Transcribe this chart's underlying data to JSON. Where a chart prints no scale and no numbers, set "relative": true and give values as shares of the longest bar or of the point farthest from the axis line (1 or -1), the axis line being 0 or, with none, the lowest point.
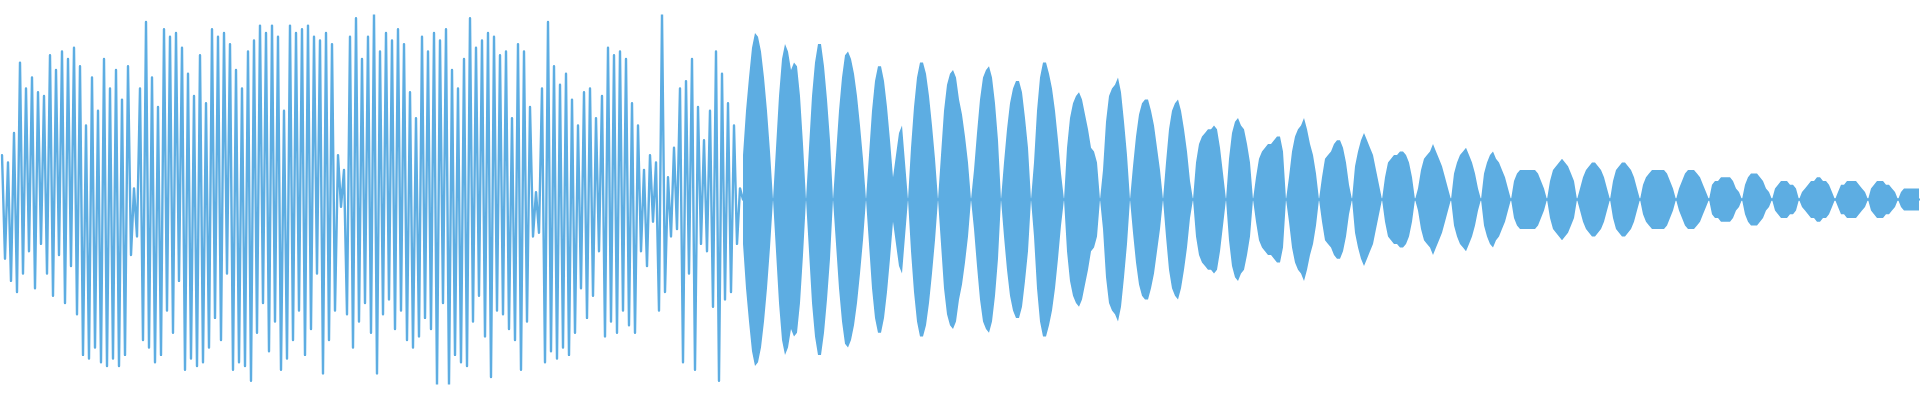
{
  "chart_data": {
    "type": "line",
    "relative": true,
    "categories": [
      null,
      null,
      null,
      null,
      null,
      null,
      null,
      null,
      null,
      null,
      null,
      null,
      null,
      null,
      null,
      null,
      null,
      null,
      null,
      null,
      null,
      null,
      null,
      null,
      null,
      null,
      null,
      null,
      null,
      null,
      null,
      null,
      null,
      null,
      null,
      null,
      null,
      null,
      null,
      null,
      null,
      null,
      null,
      null,
      null,
      null,
      null,
      null,
      null,
      null,
      null,
      null,
      null,
      null,
      null,
      null,
      null,
      null,
      null,
      null,
      null,
      null,
      null,
      null,
      null,
      null,
      null,
      null,
      null,
      null,
      null,
      null,
      null,
      null,
      null,
      null,
      null,
      null,
      null,
      null,
      null,
      null,
      null,
      null,
      null,
      null,
      null,
      null,
      null,
      null,
      null,
      null,
      null,
      null,
      null,
      null,
      null,
      null,
      null,
      null,
      null,
      null,
      null,
      null,
      null,
      null,
      null,
      null,
      null,
      null,
      null,
      null,
      null,
      null,
      null,
      null,
      null,
      null,
      null,
      null,
      null,
      null,
      null,
      null,
      null,
      null,
      null,
      null,
      null,
      null,
      null,
      null,
      null,
      null,
      null,
      null,
      null,
      null,
      null,
      null,
      null,
      null,
      null,
      null,
      null,
      null,
      null,
      null,
      null,
      null,
      null,
      null,
      null,
      null,
      null,
      null,
      null,
      null,
      null,
      null,
      null,
      null,
      null,
      null,
      null,
      null,
      null,
      null,
      null,
      null,
      null,
      null,
      null,
      null,
      null,
      null,
      null,
      null,
      null,
      null,
      null,
      null,
      null,
      null,
      null,
      null,
      null,
      null,
      null,
      null,
      null,
      null,
      null,
      null,
      null,
      null,
      null,
      null,
      null,
      null,
      null,
      null,
      null,
      null,
      null,
      null,
      null,
      null,
      null,
      null,
      null,
      null,
      null,
      null,
      null,
      null,
      null,
      null,
      null,
      null,
      null,
      null,
      null,
      null,
      null,
      null,
      null,
      null,
      null,
      null,
      null,
      null,
      null,
      null,
      null,
      null,
      null,
      null,
      null,
      null,
      null,
      null,
      null,
      null,
      null,
      null,
      null,
      null,
      null,
      null,
      null,
      null,
      null,
      null,
      null,
      null,
      null,
      null,
      null,
      null,
      null,
      null,
      null,
      null,
      null,
      null,
      null,
      null,
      null,
      null,
      null,
      null,
      null,
      null,
      null,
      null,
      null,
      null,
      null,
      null,
      null,
      null,
      null,
      null,
      null,
      null,
      null,
      null,
      null,
      null,
      null,
      null,
      null,
      null,
      null,
      null,
      null,
      null,
      null,
      null,
      null,
      null,
      null,
      null,
      null,
      null,
      null,
      null,
      null,
      null,
      null,
      null,
      null,
      null,
      null,
      null,
      null,
      null,
      null,
      null,
      null,
      null,
      null,
      null,
      null,
      null,
      null,
      null,
      null,
      null,
      null,
      null,
      null,
      null,
      null,
      null,
      null,
      null,
      null,
      null,
      null,
      null,
      null,
      null,
      null,
      null,
      null,
      null,
      null,
      null,
      null,
      null,
      null,
      null,
      null,
      null,
      null,
      null,
      null,
      null,
      null,
      null,
      null,
      null,
      null,
      null,
      null,
      null,
      null,
      null,
      null,
      null,
      null,
      null,
      null,
      null,
      null,
      null,
      null,
      null,
      null,
      null,
      null,
      null,
      null,
      null,
      null,
      null,
      null,
      null,
      null,
      null,
      null,
      null,
      null,
      null,
      null,
      null,
      null,
      null,
      null,
      null,
      null,
      null,
      null,
      null,
      null,
      null,
      null,
      null,
      null,
      null,
      null,
      null,
      null,
      null,
      null,
      null,
      null,
      null,
      null,
      null,
      null,
      null,
      null,
      null,
      null,
      null,
      null,
      null,
      null,
      null,
      null,
      null,
      null,
      null,
      null,
      null,
      null,
      null,
      null,
      null,
      null,
      null,
      null,
      null,
      null,
      null,
      null,
      null,
      null,
      null,
      null,
      null,
      null,
      null,
      null,
      null,
      null,
      null,
      null,
      null,
      null,
      null,
      null,
      null,
      null,
      null,
      null,
      null,
      null,
      null,
      null,
      null,
      null,
      null,
      null,
      null,
      null,
      null,
      null,
      null,
      null,
      null,
      null,
      null,
      null,
      null,
      null,
      null,
      null,
      null,
      null,
      null,
      null,
      null,
      null,
      null,
      null,
      null,
      null,
      null,
      null,
      null,
      null,
      null,
      null,
      null,
      null,
      null,
      null,
      null,
      null,
      null,
      null,
      null,
      null,
      null,
      null,
      null,
      null,
      null,
      null,
      null,
      null,
      null,
      null,
      null,
      null,
      null,
      null,
      null,
      null,
      null,
      null,
      null,
      null,
      null,
      null,
      null,
      null,
      null,
      null,
      null,
      null,
      null,
      null,
      null,
      null,
      null,
      null,
      null,
      null,
      null,
      null,
      null,
      null,
      null,
      null,
      null,
      null,
      null,
      null,
      null,
      null,
      null,
      null,
      null,
      null,
      null,
      null,
      null,
      null,
      null,
      null,
      null,
      null,
      null,
      null,
      null,
      null,
      null,
      null,
      null,
      null,
      null,
      null,
      null,
      null,
      null,
      null,
      null,
      null,
      null,
      null,
      null,
      null,
      null,
      null,
      null,
      null,
      null,
      null,
      null,
      null,
      null,
      null,
      null,
      null,
      null,
      null,
      null,
      null,
      null,
      null,
      null,
      null,
      null,
      null,
      null,
      null,
      null,
      null,
      null,
      null,
      null,
      null,
      null,
      null,
      null,
      null,
      null,
      null,
      null,
      null,
      null,
      null,
      null,
      null,
      null
    ],
    "series": [
      {
        "color": "#5dade2",
        "values": [
          0.62,
          0.34,
          0.6,
          0.28,
          0.68,
          0.25,
          0.87,
          0.3,
          0.8,
          0.36,
          0.83,
          0.26,
          0.79,
          0.38,
          0.78,
          0.3,
          0.89,
          0.24,
          0.85,
          0.35,
          0.9,
          0.22,
          0.88,
          0.32,
          0.91,
          0.19,
          0.86,
          0.08,
          0.7,
          0.07,
          0.83,
          0.1,
          0.74,
          0.06,
          0.88,
          0.05,
          0.8,
          0.07,
          0.85,
          0.05,
          0.77,
          0.08,
          0.86,
          0.35,
          0.53,
          0.4,
          0.8,
          0.12,
          0.98,
          0.1,
          0.83,
          0.06,
          0.75,
          0.08,
          0.96,
          0.2,
          0.94,
          0.14,
          0.95,
          0.28,
          0.91,
          0.04,
          0.84,
          0.07,
          0.78,
          0.05,
          0.89,
          0.06,
          0.76,
          0.1,
          0.96,
          0.18,
          0.94,
          0.12,
          0.95,
          0.3,
          0.92,
          0.04,
          0.85,
          0.06,
          0.8,
          0.05,
          0.9,
          0.01,
          0.93,
          0.14,
          0.97,
          0.22,
          0.95,
          0.09,
          0.97,
          0.17,
          0.94,
          0.04,
          0.74,
          0.07,
          0.97,
          0.12,
          0.95,
          0.2,
          0.96,
          0.08,
          0.97,
          0.15,
          0.94,
          0.3,
          0.93,
          0.03,
          0.95,
          0.12,
          0.92,
          0.2,
          0.62,
          0.48,
          0.58,
          0.19,
          0.94,
          0.1,
          0.99,
          0.17,
          0.88,
          0.22,
          0.94,
          0.14,
          1.0,
          0.03,
          0.9,
          0.19,
          0.95,
          0.23,
          0.93,
          0.15,
          0.96,
          0.2,
          0.92,
          0.12,
          0.79,
          0.1,
          0.72,
          0.13,
          0.94,
          0.18,
          0.9,
          0.15,
          0.95,
          0.0,
          0.93,
          0.22,
          0.96,
          0.0,
          0.85,
          0.08,
          0.8,
          0.06,
          0.88,
          0.05,
          0.99,
          0.17,
          0.91,
          0.24,
          0.93,
          0.13,
          0.95,
          0.02,
          0.94,
          0.2,
          0.89,
          0.19,
          0.9,
          0.15,
          0.72,
          0.12,
          0.92,
          0.04,
          0.9,
          0.17,
          0.75,
          0.4,
          0.52,
          0.41,
          0.8,
          0.06,
          0.98,
          0.09,
          0.86,
          0.07,
          0.81,
          0.1,
          0.84,
          0.08,
          0.77,
          0.14,
          0.7,
          0.26,
          0.79,
          0.18,
          0.8,
          0.24,
          0.72,
          0.36,
          0.78,
          0.13,
          0.91,
          0.17,
          0.89,
          0.14,
          0.9,
          0.2,
          0.88,
          0.16,
          0.76,
          0.14,
          0.7,
          0.36,
          0.58,
          0.32,
          0.62,
          0.44,
          0.6,
          0.2,
          1.0,
          0.25,
          0.56,
          0.4,
          0.64,
          0.42,
          0.8,
          0.06,
          0.82,
          0.3,
          0.88,
          0.04,
          0.75,
          0.38,
          0.66,
          0.36,
          0.74,
          0.21,
          0.9,
          0.01,
          0.84,
          0.23,
          0.76,
          0.25,
          0.7,
          0.38,
          0.53,
          0.5,
          0.5,
          0.5,
          0.5,
          0.5,
          0.5,
          0.5,
          0.5,
          0.5,
          0.5,
          0.5,
          0.5,
          0.5,
          0.5,
          0.5,
          0.5,
          0.5,
          0.5,
          0.5,
          0.5,
          0.5,
          0.5,
          0.5,
          0.5,
          0.5,
          0.5,
          0.5,
          0.5,
          0.5,
          0.5,
          0.5,
          0.5,
          0.5,
          0.5,
          0.5,
          0.5,
          0.5,
          0.5,
          0.5,
          0.5,
          0.5,
          0.5,
          0.5,
          0.5,
          0.5,
          0.5,
          0.5,
          0.5,
          0.5,
          0.5,
          0.5,
          0.5,
          0.5,
          0.5,
          0.5,
          0.5,
          0.5,
          0.5,
          0.5,
          0.5,
          0.5,
          0.5,
          0.5,
          0.5,
          0.5,
          0.5,
          0.5,
          0.5,
          0.5,
          0.5,
          0.5,
          0.5,
          0.5,
          0.5,
          0.5,
          0.5,
          0.5,
          0.5,
          0.5,
          0.5,
          0.5,
          0.5,
          0.5,
          0.5,
          0.5,
          0.5,
          0.5,
          0.5,
          0.5,
          0.5,
          0.5,
          0.5,
          0.5,
          0.5,
          0.5,
          0.5,
          0.5,
          0.5,
          0.5,
          0.5,
          0.5,
          0.5,
          0.5,
          0.5,
          0.5,
          0.5,
          0.5,
          0.5,
          0.5,
          0.5,
          0.5,
          0.5,
          0.5,
          0.5,
          0.5,
          0.5,
          0.5,
          0.5,
          0.5,
          0.5,
          0.5,
          0.5,
          0.5,
          0.5,
          0.5,
          0.5,
          0.5,
          0.5,
          0.5,
          0.5,
          0.5,
          0.5,
          0.5,
          0.5,
          0.5,
          0.5,
          0.5,
          0.5,
          0.5,
          0.5,
          0.5,
          0.5,
          0.5,
          0.5,
          0.5,
          0.5,
          0.5,
          0.5,
          0.5,
          0.5,
          0.5,
          0.5,
          0.5,
          0.5,
          0.5,
          0.5,
          0.5,
          0.5,
          0.5,
          0.5,
          0.5,
          0.5,
          0.5,
          0.5,
          0.5,
          0.5,
          0.5,
          0.5,
          0.5,
          0.5,
          0.5,
          0.5,
          0.5,
          0.5,
          0.5,
          0.5,
          0.5,
          0.5,
          0.5,
          0.5,
          0.5,
          0.5,
          0.5,
          0.5,
          0.5,
          0.5,
          0.5,
          0.5,
          0.5,
          0.5,
          0.5,
          0.5,
          0.5,
          0.5,
          0.5,
          0.5,
          0.5,
          0.5,
          0.5,
          0.5,
          0.5,
          0.5,
          0.5,
          0.5,
          0.5,
          0.5,
          0.5,
          0.5,
          0.5,
          0.5,
          0.5,
          0.5,
          0.5,
          0.5,
          0.5,
          0.5,
          0.5,
          0.5,
          0.5,
          0.5,
          0.5,
          0.5,
          0.5,
          0.5,
          0.5,
          0.5,
          0.5,
          0.5,
          0.5,
          0.5,
          0.5,
          0.5,
          0.5,
          0.5,
          0.5,
          0.5,
          0.5,
          0.5,
          0.5,
          0.5,
          0.5,
          0.5,
          0.5,
          0.5,
          0.5,
          0.5,
          0.5,
          0.5,
          0.5,
          0.5,
          0.5,
          0.5,
          0.5,
          0.5,
          0.5,
          0.5,
          0.5,
          0.5,
          0.5,
          0.5,
          0.5,
          0.5,
          0.5,
          0.5,
          0.5,
          0.5,
          0.5,
          0.5,
          0.5,
          0.5,
          0.5,
          0.5,
          0.5,
          0.5,
          0.5,
          0.5,
          0.5,
          0.5,
          0.5,
          0.5,
          0.5,
          0.5,
          0.5,
          0.5,
          0.5,
          0.5,
          0.5,
          0.5,
          0.5,
          0.5,
          0.5,
          0.5,
          0.5,
          0.5,
          0.5,
          0.5,
          0.5,
          0.5,
          0.5,
          0.5,
          0.5,
          0.5,
          0.5,
          0.5,
          0.5,
          0.5,
          0.5,
          0.5,
          0.5,
          0.5,
          0.5,
          0.5,
          0.5,
          0.5,
          0.5,
          0.5,
          0.5,
          0.5,
          0.5,
          0.5,
          0.5,
          0.5,
          0.5,
          0.5,
          0.5,
          0.5,
          0.5,
          0.5,
          0.5,
          0.5,
          0.5,
          0.5,
          0.5,
          0.5,
          0.5,
          0.5,
          0.5,
          0.5,
          0.5,
          0.5,
          0.5,
          0.5,
          0.5,
          0.5,
          0.5,
          0.5,
          0.5,
          0.5,
          0.5,
          0.5,
          0.5,
          0.5,
          0.5,
          0.5,
          0.5,
          0.5,
          0.5,
          0.5,
          0.5,
          0.5,
          0.5,
          0.5,
          0.5,
          0.5,
          0.5,
          0.5,
          0.5,
          0.5,
          0.5,
          0.5,
          0.5,
          0.5,
          0.5,
          0.5,
          0.5,
          0.5,
          0.5,
          0.5,
          0.5,
          0.5,
          0.5,
          0.5,
          0.5,
          0.5,
          0.5,
          0.5,
          0.5,
          0.5,
          0.5,
          0.5,
          0.5,
          0.5,
          0.5
        ],
        "upper": [
          null,
          null,
          null,
          null,
          null,
          null,
          null,
          null,
          null,
          null,
          null,
          null,
          null,
          null,
          null,
          null,
          null,
          null,
          null,
          null,
          null,
          null,
          null,
          null,
          null,
          null,
          null,
          null,
          null,
          null,
          null,
          null,
          null,
          null,
          null,
          null,
          null,
          null,
          null,
          null,
          null,
          null,
          null,
          null,
          null,
          null,
          null,
          null,
          null,
          null,
          null,
          null,
          null,
          null,
          null,
          null,
          null,
          null,
          null,
          null,
          null,
          null,
          null,
          null,
          null,
          null,
          null,
          null,
          null,
          null,
          null,
          null,
          null,
          null,
          null,
          null,
          null,
          null,
          null,
          null,
          null,
          null,
          null,
          null,
          null,
          null,
          null,
          null,
          null,
          null,
          null,
          null,
          null,
          null,
          null,
          null,
          null,
          null,
          null,
          null,
          null,
          null,
          null,
          null,
          null,
          null,
          null,
          null,
          null,
          null,
          null,
          null,
          null,
          null,
          null,
          null,
          null,
          null,
          null,
          null,
          null,
          null,
          null,
          null,
          null,
          null,
          null,
          null,
          null,
          null,
          null,
          null,
          null,
          null,
          null,
          null,
          null,
          null,
          null,
          null,
          null,
          null,
          null,
          null,
          null,
          null,
          null,
          null,
          null,
          null,
          null,
          null,
          null,
          null,
          null,
          null,
          null,
          null,
          null,
          null,
          null,
          null,
          null,
          null,
          null,
          null,
          null,
          null,
          null,
          null,
          null,
          null,
          null,
          null,
          null,
          null,
          null,
          null,
          null,
          null,
          null,
          null,
          null,
          null,
          null,
          null,
          null,
          null,
          null,
          null,
          null,
          null,
          null,
          null,
          null,
          null,
          null,
          null,
          null,
          null,
          null,
          null,
          null,
          null,
          null,
          null,
          null,
          null,
          null,
          null,
          null,
          null,
          null,
          null,
          null,
          null,
          null,
          null,
          null,
          null,
          null,
          null,
          null,
          null,
          null,
          null,
          null,
          null,
          null,
          null,
          null,
          null,
          null,
          null,
          null,
          null,
          null,
          null,
          null,
          null,
          null,
          null,
          null,
          null,
          null,
          null,
          null,
          0.62,
          0.74,
          0.83,
          0.91,
          0.95,
          0.94,
          0.9,
          0.83,
          0.74,
          0.63,
          0.5,
          0.64,
          0.78,
          0.88,
          0.92,
          0.9,
          0.85,
          0.87,
          0.86,
          0.78,
          0.65,
          0.5,
          0.64,
          0.78,
          0.87,
          0.92,
          0.92,
          0.86,
          0.77,
          0.66,
          0.5,
          0.62,
          0.74,
          0.83,
          0.89,
          0.9,
          0.88,
          0.84,
          0.78,
          0.7,
          0.61,
          0.5,
          0.62,
          0.74,
          0.82,
          0.86,
          0.86,
          0.82,
          0.75,
          0.66,
          0.56,
          0.62,
          0.68,
          0.7,
          0.6,
          0.5,
          0.64,
          0.75,
          0.83,
          0.87,
          0.87,
          0.84,
          0.78,
          0.7,
          0.61,
          0.5,
          0.62,
          0.74,
          0.81,
          0.84,
          0.85,
          0.83,
          0.77,
          0.73,
          0.67,
          0.6,
          0.5,
          0.58,
          0.68,
          0.77,
          0.83,
          0.85,
          0.86,
          0.83,
          0.76,
          0.66,
          0.5,
          0.6,
          0.69,
          0.76,
          0.8,
          0.82,
          0.82,
          0.79,
          0.72,
          0.64,
          0.5,
          0.6,
          0.74,
          0.83,
          0.87,
          0.87,
          0.84,
          0.8,
          0.74,
          0.66,
          0.57,
          0.5,
          0.64,
          0.72,
          0.76,
          0.78,
          0.79,
          0.77,
          0.73,
          0.69,
          0.64,
          0.63,
          0.6,
          0.5,
          0.58,
          0.71,
          0.78,
          0.8,
          0.81,
          0.83,
          0.79,
          0.71,
          0.62,
          0.5,
          0.59,
          0.67,
          0.73,
          0.76,
          0.77,
          0.77,
          0.74,
          0.7,
          0.64,
          0.58,
          0.5,
          0.6,
          0.69,
          0.74,
          0.76,
          0.77,
          0.74,
          0.69,
          0.63,
          0.55,
          0.5,
          0.6,
          0.65,
          0.67,
          0.68,
          0.69,
          0.69,
          0.7,
          0.69,
          0.64,
          0.57,
          0.5,
          0.61,
          0.68,
          0.71,
          0.72,
          0.7,
          0.69,
          0.65,
          0.6,
          0.5,
          0.56,
          0.61,
          0.63,
          0.64,
          0.65,
          0.65,
          0.66,
          0.67,
          0.67,
          0.63,
          0.5,
          0.56,
          0.63,
          0.67,
          0.69,
          0.7,
          0.72,
          0.69,
          0.65,
          0.62,
          0.57,
          0.5,
          0.56,
          0.61,
          0.62,
          0.63,
          0.65,
          0.66,
          0.66,
          0.64,
          0.6,
          0.54,
          0.5,
          0.59,
          0.63,
          0.66,
          0.68,
          0.66,
          0.64,
          0.62,
          0.58,
          0.54,
          0.5,
          0.56,
          0.6,
          0.61,
          0.62,
          0.62,
          0.63,
          0.63,
          0.62,
          0.6,
          0.56,
          0.5,
          0.53,
          0.58,
          0.61,
          0.62,
          0.63,
          0.65,
          0.63,
          0.61,
          0.59,
          0.56,
          0.53,
          0.5,
          0.57,
          0.6,
          0.62,
          0.63,
          0.64,
          0.62,
          0.6,
          0.57,
          0.53,
          0.5,
          0.57,
          0.6,
          0.62,
          0.63,
          0.61,
          0.6,
          0.58,
          0.56,
          0.53,
          0.5,
          0.55,
          0.57,
          0.58,
          0.58,
          0.58,
          0.58,
          0.58,
          0.58,
          0.57,
          0.55,
          0.53,
          0.5,
          0.55,
          0.58,
          0.59,
          0.6,
          0.61,
          0.6,
          0.59,
          0.57,
          0.55,
          0.5,
          0.53,
          0.56,
          0.58,
          0.59,
          0.6,
          0.6,
          0.59,
          0.58,
          0.56,
          0.53,
          0.5,
          0.55,
          0.58,
          0.59,
          0.6,
          0.6,
          0.59,
          0.58,
          0.56,
          0.53,
          0.5,
          0.54,
          0.56,
          0.57,
          0.58,
          0.58,
          0.58,
          0.58,
          0.58,
          0.57,
          0.55,
          0.53,
          0.5,
          0.53,
          0.55,
          0.57,
          0.58,
          0.58,
          0.58,
          0.57,
          0.56,
          0.54,
          0.52,
          0.5,
          0.54,
          0.55,
          0.55,
          0.56,
          0.56,
          0.56,
          0.56,
          0.55,
          0.53,
          0.52,
          0.5,
          0.54,
          0.56,
          0.57,
          0.57,
          0.57,
          0.56,
          0.55,
          0.53,
          0.52,
          0.5,
          0.53,
          0.54,
          0.55,
          0.55,
          0.55,
          0.54,
          0.54,
          0.53,
          0.5,
          0.52,
          0.53,
          0.54,
          0.55,
          0.55,
          0.56,
          0.56,
          0.55,
          0.55,
          0.54,
          0.52,
          0.5,
          0.52,
          0.54,
          0.54,
          0.55,
          0.55,
          0.55,
          0.55,
          0.54,
          0.53,
          0.52,
          0.5,
          0.53,
          0.54,
          0.55,
          0.55,
          0.55,
          0.54,
          0.54,
          0.53,
          0.52,
          0.5,
          0.52,
          0.53,
          0.53,
          0.53,
          0.53,
          0.53,
          0.53
        ],
        "lower": [
          null,
          null,
          null,
          null,
          null,
          null,
          null,
          null,
          null,
          null,
          null,
          null,
          null,
          null,
          null,
          null,
          null,
          null,
          null,
          null,
          null,
          null,
          null,
          null,
          null,
          null,
          null,
          null,
          null,
          null,
          null,
          null,
          null,
          null,
          null,
          null,
          null,
          null,
          null,
          null,
          null,
          null,
          null,
          null,
          null,
          null,
          null,
          null,
          null,
          null,
          null,
          null,
          null,
          null,
          null,
          null,
          null,
          null,
          null,
          null,
          null,
          null,
          null,
          null,
          null,
          null,
          null,
          null,
          null,
          null,
          null,
          null,
          null,
          null,
          null,
          null,
          null,
          null,
          null,
          null,
          null,
          null,
          null,
          null,
          null,
          null,
          null,
          null,
          null,
          null,
          null,
          null,
          null,
          null,
          null,
          null,
          null,
          null,
          null,
          null,
          null,
          null,
          null,
          null,
          null,
          null,
          null,
          null,
          null,
          null,
          null,
          null,
          null,
          null,
          null,
          null,
          null,
          null,
          null,
          null,
          null,
          null,
          null,
          null,
          null,
          null,
          null,
          null,
          null,
          null,
          null,
          null,
          null,
          null,
          null,
          null,
          null,
          null,
          null,
          null,
          null,
          null,
          null,
          null,
          null,
          null,
          null,
          null,
          null,
          null,
          null,
          null,
          null,
          null,
          null,
          null,
          null,
          null,
          null,
          null,
          null,
          null,
          null,
          null,
          null,
          null,
          null,
          null,
          null,
          null,
          null,
          null,
          null,
          null,
          null,
          null,
          null,
          null,
          null,
          null,
          null,
          null,
          null,
          null,
          null,
          null,
          null,
          null,
          null,
          null,
          null,
          null,
          null,
          null,
          null,
          null,
          null,
          null,
          null,
          null,
          null,
          null,
          null,
          null,
          null,
          null,
          null,
          null,
          null,
          null,
          null,
          null,
          null,
          null,
          null,
          null,
          null,
          null,
          null,
          null,
          null,
          null,
          null,
          null,
          null,
          null,
          null,
          null,
          null,
          null,
          null,
          null,
          null,
          null,
          null,
          null,
          null,
          null,
          null,
          null,
          null,
          null,
          null,
          null,
          null,
          null,
          null,
          0.38,
          0.26,
          0.17,
          0.09,
          0.05,
          0.06,
          0.1,
          0.17,
          0.26,
          0.37,
          0.5,
          0.36,
          0.22,
          0.12,
          0.08,
          0.1,
          0.15,
          0.13,
          0.14,
          0.22,
          0.35,
          0.5,
          0.36,
          0.22,
          0.13,
          0.08,
          0.08,
          0.14,
          0.23,
          0.34,
          0.5,
          0.38,
          0.26,
          0.17,
          0.11,
          0.1,
          0.12,
          0.16,
          0.22,
          0.3,
          0.39,
          0.5,
          0.38,
          0.26,
          0.18,
          0.14,
          0.14,
          0.18,
          0.25,
          0.34,
          0.44,
          0.38,
          0.32,
          0.3,
          0.4,
          0.5,
          0.36,
          0.25,
          0.17,
          0.13,
          0.13,
          0.16,
          0.22,
          0.3,
          0.39,
          0.5,
          0.38,
          0.26,
          0.19,
          0.16,
          0.15,
          0.17,
          0.23,
          0.27,
          0.33,
          0.4,
          0.5,
          0.42,
          0.32,
          0.23,
          0.17,
          0.15,
          0.14,
          0.17,
          0.24,
          0.34,
          0.5,
          0.4,
          0.31,
          0.24,
          0.2,
          0.18,
          0.18,
          0.21,
          0.28,
          0.36,
          0.5,
          0.4,
          0.26,
          0.17,
          0.13,
          0.13,
          0.16,
          0.2,
          0.26,
          0.34,
          0.43,
          0.5,
          0.36,
          0.28,
          0.24,
          0.22,
          0.21,
          0.23,
          0.27,
          0.31,
          0.36,
          0.37,
          0.4,
          0.5,
          0.42,
          0.29,
          0.22,
          0.2,
          0.19,
          0.17,
          0.21,
          0.29,
          0.38,
          0.5,
          0.41,
          0.33,
          0.27,
          0.24,
          0.23,
          0.23,
          0.26,
          0.3,
          0.36,
          0.42,
          0.5,
          0.4,
          0.31,
          0.26,
          0.24,
          0.23,
          0.26,
          0.31,
          0.37,
          0.45,
          0.5,
          0.4,
          0.35,
          0.33,
          0.32,
          0.31,
          0.31,
          0.3,
          0.31,
          0.36,
          0.43,
          0.5,
          0.39,
          0.32,
          0.29,
          0.28,
          0.3,
          0.31,
          0.35,
          0.4,
          0.5,
          0.44,
          0.39,
          0.37,
          0.36,
          0.35,
          0.35,
          0.34,
          0.33,
          0.33,
          0.37,
          0.5,
          0.44,
          0.37,
          0.33,
          0.31,
          0.3,
          0.28,
          0.31,
          0.35,
          0.38,
          0.43,
          0.5,
          0.44,
          0.39,
          0.38,
          0.37,
          0.35,
          0.34,
          0.34,
          0.36,
          0.4,
          0.46,
          0.5,
          0.41,
          0.37,
          0.34,
          0.32,
          0.34,
          0.36,
          0.38,
          0.42,
          0.46,
          0.5,
          0.44,
          0.4,
          0.39,
          0.38,
          0.38,
          0.37,
          0.37,
          0.38,
          0.4,
          0.44,
          0.5,
          0.47,
          0.42,
          0.39,
          0.38,
          0.37,
          0.35,
          0.37,
          0.39,
          0.41,
          0.44,
          0.47,
          0.5,
          0.43,
          0.4,
          0.38,
          0.37,
          0.36,
          0.38,
          0.4,
          0.43,
          0.47,
          0.5,
          0.43,
          0.4,
          0.38,
          0.37,
          0.39,
          0.4,
          0.42,
          0.44,
          0.47,
          0.5,
          0.45,
          0.43,
          0.42,
          0.42,
          0.42,
          0.42,
          0.42,
          0.42,
          0.43,
          0.45,
          0.47,
          0.5,
          0.45,
          0.42,
          0.41,
          0.4,
          0.39,
          0.4,
          0.41,
          0.43,
          0.45,
          0.5,
          0.47,
          0.44,
          0.42,
          0.41,
          0.4,
          0.4,
          0.41,
          0.42,
          0.44,
          0.47,
          0.5,
          0.45,
          0.42,
          0.41,
          0.4,
          0.4,
          0.41,
          0.42,
          0.44,
          0.47,
          0.5,
          0.46,
          0.44,
          0.43,
          0.42,
          0.42,
          0.42,
          0.42,
          0.42,
          0.43,
          0.45,
          0.47,
          0.5,
          0.47,
          0.45,
          0.43,
          0.42,
          0.42,
          0.42,
          0.43,
          0.44,
          0.46,
          0.48,
          0.5,
          0.46,
          0.45,
          0.45,
          0.44,
          0.44,
          0.44,
          0.44,
          0.45,
          0.47,
          0.48,
          0.5,
          0.46,
          0.44,
          0.43,
          0.43,
          0.43,
          0.44,
          0.45,
          0.47,
          0.48,
          0.5,
          0.47,
          0.46,
          0.45,
          0.45,
          0.45,
          0.46,
          0.46,
          0.47,
          0.5,
          0.48,
          0.47,
          0.46,
          0.45,
          0.45,
          0.44,
          0.44,
          0.45,
          0.45,
          0.46,
          0.48,
          0.5,
          0.48,
          0.46,
          0.46,
          0.45,
          0.45,
          0.45,
          0.45,
          0.46,
          0.47,
          0.48,
          0.5,
          0.47,
          0.46,
          0.45,
          0.45,
          0.45,
          0.46,
          0.46,
          0.47,
          0.48,
          0.5,
          0.48,
          0.47,
          0.47,
          0.47,
          0.47,
          0.47,
          0.47
        ]
      }
    ]
  }
}
